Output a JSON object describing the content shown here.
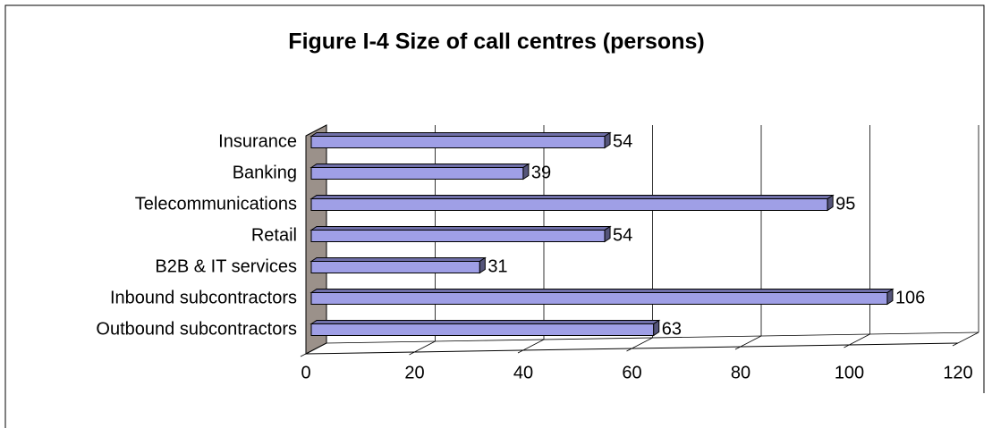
{
  "chart_data": {
    "type": "bar",
    "orientation": "horizontal",
    "title": "Figure I-4  Size of call centres (persons)",
    "categories": [
      "Insurance",
      "Banking",
      "Telecommunications",
      "Retail",
      "B2B & IT services",
      "Inbound subcontractors",
      "Outbound subcontractors"
    ],
    "values": [
      54,
      39,
      95,
      54,
      31,
      106,
      63
    ],
    "color": "#9f9fe6",
    "xlim": [
      0,
      120
    ],
    "xticks": [
      0,
      20,
      40,
      60,
      80,
      100,
      120
    ],
    "grid": true
  }
}
